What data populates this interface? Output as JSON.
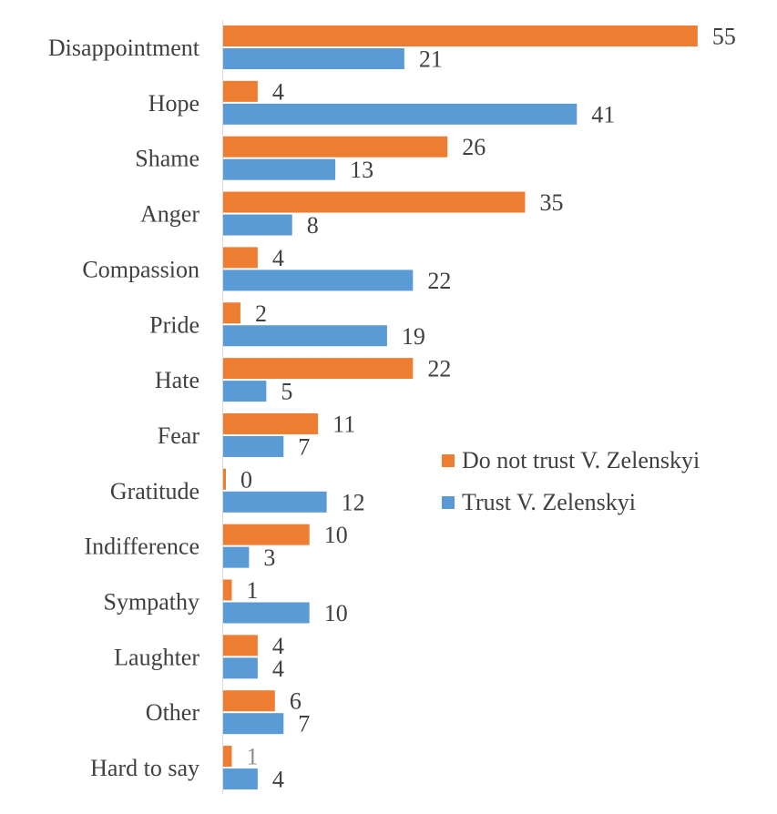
{
  "chart_data": {
    "type": "bar",
    "orientation": "horizontal",
    "title": "",
    "xlabel": "",
    "ylabel": "",
    "xlim": [
      0,
      55
    ],
    "grid": false,
    "legend_position": "center-right",
    "categories": [
      "Disappointment",
      "Hope",
      "Shame",
      "Anger",
      "Compassion",
      "Pride",
      "Hate",
      "Fear",
      "Gratitude",
      "Indifference",
      "Sympathy",
      "Laughter",
      "Other",
      "Hard to say"
    ],
    "series": [
      {
        "name": "Do not trust V. Zelenskyi",
        "color": "#ED7D31",
        "values": [
          55,
          4,
          26,
          35,
          4,
          2,
          22,
          11,
          0,
          10,
          1,
          4,
          6,
          1
        ]
      },
      {
        "name": "Trust V. Zelenskyi",
        "color": "#5B9BD5",
        "values": [
          21,
          41,
          13,
          8,
          22,
          19,
          5,
          7,
          12,
          3,
          10,
          4,
          7,
          4
        ]
      }
    ],
    "muted_label": {
      "series_index": 0,
      "category_index": 13,
      "color": "#8c8c8c"
    }
  }
}
